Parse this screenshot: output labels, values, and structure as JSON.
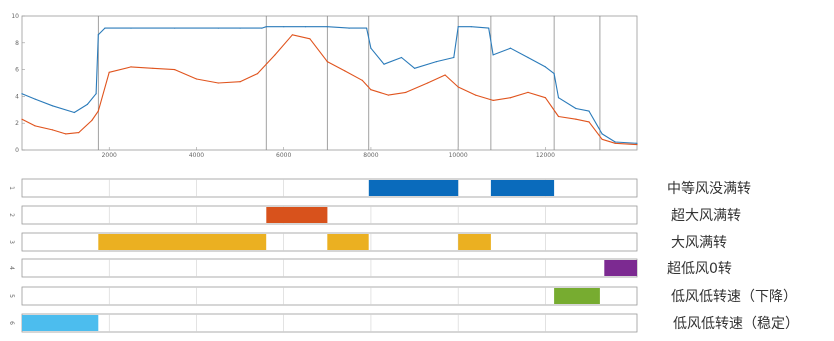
{
  "chart_data": [
    {
      "type": "line",
      "title": "",
      "xlabel": "",
      "ylabel": "",
      "xlim": [
        0,
        14100
      ],
      "ylim": [
        0,
        10
      ],
      "x_ticks": [
        "2000",
        "4000",
        "6000",
        "8000",
        "10000",
        "12000"
      ],
      "y_ticks": [
        "0",
        "2",
        "4",
        "6",
        "8",
        "10"
      ],
      "grid": false,
      "vertical_markers": [
        1750,
        5600,
        7000,
        7950,
        10000,
        10750,
        12200,
        13250
      ],
      "series": [
        {
          "color": "#2b7bba",
          "x": [
            0,
            300,
            700,
            1200,
            1500,
            1700,
            1750,
            1900,
            2500,
            3500,
            4500,
            5000,
            5500,
            5600,
            6000,
            6500,
            7000,
            7500,
            7900,
            8000,
            8300,
            8700,
            9000,
            9500,
            9900,
            10000,
            10300,
            10700,
            10800,
            11200,
            11600,
            12000,
            12200,
            12300,
            12700,
            13000,
            13300,
            13600,
            14100
          ],
          "y": [
            4.2,
            3.8,
            3.3,
            2.8,
            3.4,
            4.2,
            8.6,
            9.1,
            9.1,
            9.1,
            9.1,
            9.1,
            9.1,
            9.2,
            9.2,
            9.2,
            9.2,
            9.1,
            9.1,
            7.6,
            6.4,
            6.9,
            6.1,
            6.6,
            6.9,
            9.2,
            9.2,
            9.1,
            7.1,
            7.6,
            6.9,
            6.2,
            5.7,
            3.9,
            3.1,
            2.9,
            1.2,
            0.6,
            0.5
          ]
        },
        {
          "color": "#e0541e",
          "x": [
            0,
            300,
            700,
            1000,
            1300,
            1600,
            1750,
            2000,
            2500,
            3000,
            3500,
            4000,
            4500,
            5000,
            5400,
            5800,
            6200,
            6600,
            7000,
            7400,
            7800,
            8000,
            8400,
            8800,
            9300,
            9700,
            10000,
            10400,
            10800,
            11200,
            11600,
            12000,
            12300,
            12700,
            13000,
            13300,
            13600,
            14100
          ],
          "y": [
            2.3,
            1.8,
            1.5,
            1.2,
            1.3,
            2.2,
            2.9,
            5.8,
            6.2,
            6.1,
            6.0,
            5.3,
            5.0,
            5.1,
            5.7,
            7.1,
            8.6,
            8.3,
            6.6,
            5.9,
            5.2,
            4.5,
            4.1,
            4.3,
            5.0,
            5.6,
            4.7,
            4.1,
            3.7,
            3.9,
            4.3,
            3.9,
            2.5,
            2.3,
            2.1,
            0.8,
            0.5,
            0.4
          ]
        }
      ]
    },
    {
      "type": "table",
      "title": "",
      "row_index_labels": [
        "1",
        "2",
        "3",
        "4",
        "5",
        "6"
      ],
      "rows": [
        {
          "label": "中等风没满转",
          "color": "#0a6bbc",
          "segments": [
            [
              7950,
              10000
            ],
            [
              10750,
              12200
            ]
          ]
        },
        {
          "label": "超大风满转",
          "color": "#d8521c",
          "segments": [
            [
              5600,
              7000
            ]
          ]
        },
        {
          "label": "大风满转",
          "color": "#ebb021",
          "segments": [
            [
              1750,
              5600
            ],
            [
              7000,
              7950
            ],
            [
              10000,
              10750
            ]
          ]
        },
        {
          "label": "超低风0转",
          "color": "#7c2a91",
          "segments": [
            [
              13350,
              14100
            ]
          ]
        },
        {
          "label": "低风低转速（下降）",
          "color": "#77ac30",
          "segments": [
            [
              12200,
              13250
            ]
          ]
        },
        {
          "label": "低风低转速（稳定）",
          "color": "#4cbdee",
          "segments": [
            [
              0,
              1750
            ]
          ]
        }
      ]
    }
  ]
}
